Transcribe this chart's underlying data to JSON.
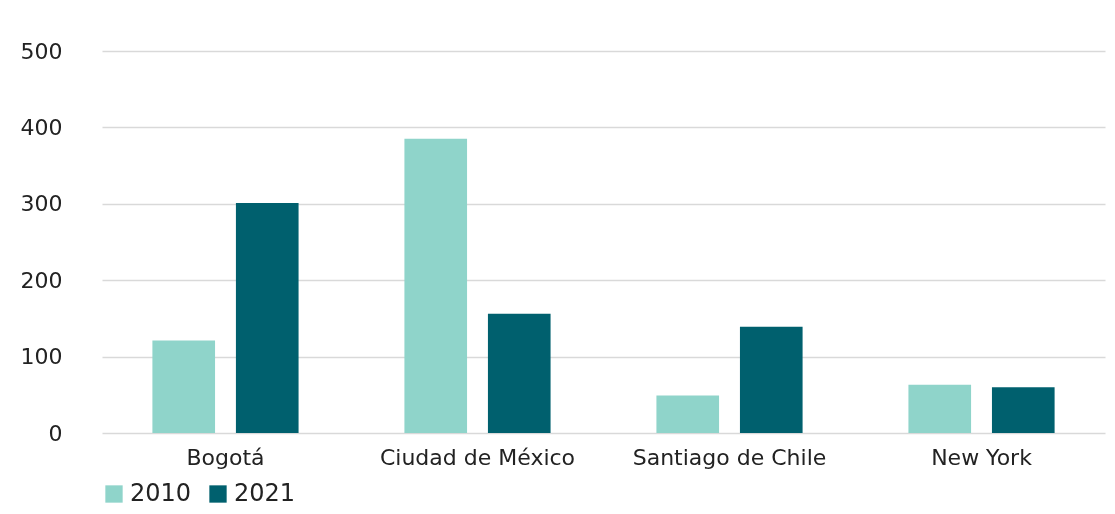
{
  "chart_data": {
    "type": "bar",
    "categories": [
      "Bogotá",
      "Ciudad de México",
      "Santiago de Chile",
      "New York"
    ],
    "series": [
      {
        "name": "2010",
        "color": "#8fd4ca",
        "values": [
          121,
          385,
          49,
          63
        ]
      },
      {
        "name": "2021",
        "color": "#00606e",
        "values": [
          301,
          156,
          139,
          60
        ]
      }
    ],
    "ylim": [
      0,
      500
    ],
    "yticks": [
      0,
      100,
      200,
      300,
      400,
      500
    ],
    "grid": "y",
    "legend": "bottom"
  }
}
